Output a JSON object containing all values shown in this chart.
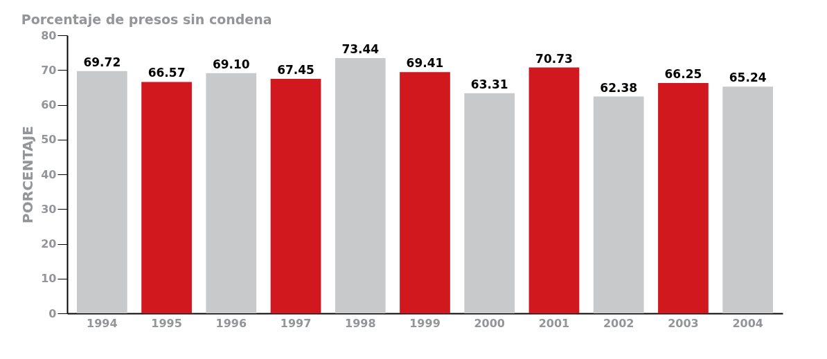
{
  "chart_data": {
    "type": "bar",
    "title": "Porcentaje de presos sin condena",
    "ylabel": "PORCENTAJE",
    "categories": [
      "1994",
      "1995",
      "1996",
      "1997",
      "1998",
      "1999",
      "2000",
      "2001",
      "2002",
      "2003",
      "2004"
    ],
    "values": [
      69.72,
      66.57,
      69.1,
      67.45,
      73.44,
      69.41,
      63.31,
      70.73,
      62.38,
      66.25,
      65.24
    ],
    "value_labels": [
      "69.72",
      "66.57",
      "69.10",
      "67.45",
      "73.44",
      "69.41",
      "63.31",
      "70.73",
      "62.38",
      "66.25",
      "65.24"
    ],
    "colors": [
      "#c8c9cb",
      "#d0181e",
      "#c8c9cb",
      "#d0181e",
      "#c8c9cb",
      "#d0181e",
      "#c8c9cb",
      "#d0181e",
      "#c8c9cb",
      "#d0181e",
      "#c8c9cb"
    ],
    "ylim": [
      0,
      80
    ],
    "yticks": [
      0,
      10,
      20,
      30,
      40,
      50,
      60,
      70,
      80
    ],
    "grid": false
  }
}
